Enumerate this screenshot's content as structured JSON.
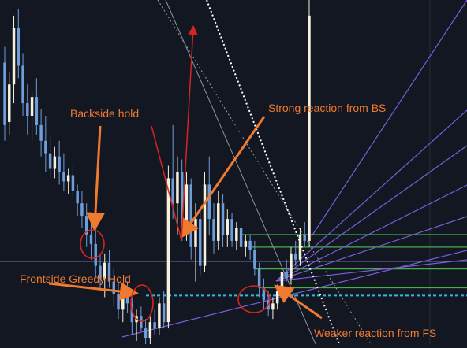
{
  "chart_data": {
    "type": "candlestick",
    "annotations": [
      "Backside hold",
      "Strong reaction from BS",
      "Frontside Greedy Hold",
      "Weaker reaction from FS"
    ],
    "candles": [
      {
        "o": 375,
        "h": 380,
        "l": 350,
        "c": 355
      },
      {
        "o": 356,
        "h": 372,
        "l": 352,
        "c": 368
      },
      {
        "o": 368,
        "h": 390,
        "l": 362,
        "c": 386
      },
      {
        "o": 386,
        "h": 392,
        "l": 370,
        "c": 374
      },
      {
        "o": 374,
        "h": 378,
        "l": 358,
        "c": 362
      },
      {
        "o": 362,
        "h": 368,
        "l": 352,
        "c": 358
      },
      {
        "o": 358,
        "h": 366,
        "l": 350,
        "c": 364
      },
      {
        "o": 364,
        "h": 370,
        "l": 352,
        "c": 355
      },
      {
        "o": 355,
        "h": 360,
        "l": 345,
        "c": 350
      },
      {
        "o": 350,
        "h": 358,
        "l": 340,
        "c": 346
      },
      {
        "o": 346,
        "h": 352,
        "l": 338,
        "c": 341
      },
      {
        "o": 341,
        "h": 348,
        "l": 338,
        "c": 345
      },
      {
        "o": 345,
        "h": 350,
        "l": 336,
        "c": 340
      },
      {
        "o": 340,
        "h": 346,
        "l": 334,
        "c": 337
      },
      {
        "o": 337,
        "h": 341,
        "l": 333,
        "c": 339
      },
      {
        "o": 339,
        "h": 342,
        "l": 332,
        "c": 334
      },
      {
        "o": 334,
        "h": 336,
        "l": 326,
        "c": 330
      },
      {
        "o": 330,
        "h": 334,
        "l": 322,
        "c": 326
      },
      {
        "o": 326,
        "h": 330,
        "l": 316,
        "c": 320
      },
      {
        "o": 320,
        "h": 324,
        "l": 312,
        "c": 317
      },
      {
        "o": 317,
        "h": 322,
        "l": 306,
        "c": 310
      },
      {
        "o": 310,
        "h": 314,
        "l": 302,
        "c": 306
      },
      {
        "o": 306,
        "h": 314,
        "l": 300,
        "c": 311
      },
      {
        "o": 311,
        "h": 315,
        "l": 303,
        "c": 305
      },
      {
        "o": 305,
        "h": 309,
        "l": 297,
        "c": 301
      },
      {
        "o": 301,
        "h": 305,
        "l": 293,
        "c": 296
      },
      {
        "o": 296,
        "h": 304,
        "l": 292,
        "c": 301
      },
      {
        "o": 301,
        "h": 305,
        "l": 295,
        "c": 298
      },
      {
        "o": 298,
        "h": 300,
        "l": 288,
        "c": 292
      },
      {
        "o": 292,
        "h": 296,
        "l": 286,
        "c": 294
      },
      {
        "o": 294,
        "h": 297,
        "l": 289,
        "c": 290
      },
      {
        "o": 290,
        "h": 293,
        "l": 285,
        "c": 287
      },
      {
        "o": 287,
        "h": 294,
        "l": 285,
        "c": 292
      },
      {
        "o": 292,
        "h": 296,
        "l": 288,
        "c": 290
      },
      {
        "o": 290,
        "h": 300,
        "l": 288,
        "c": 298
      },
      {
        "o": 298,
        "h": 302,
        "l": 290,
        "c": 292
      },
      {
        "o": 292,
        "h": 342,
        "l": 290,
        "c": 338
      },
      {
        "o": 338,
        "h": 355,
        "l": 325,
        "c": 330
      },
      {
        "o": 330,
        "h": 345,
        "l": 320,
        "c": 340
      },
      {
        "o": 340,
        "h": 344,
        "l": 318,
        "c": 322
      },
      {
        "o": 322,
        "h": 340,
        "l": 318,
        "c": 336
      },
      {
        "o": 336,
        "h": 338,
        "l": 312,
        "c": 316
      },
      {
        "o": 316,
        "h": 330,
        "l": 305,
        "c": 325
      },
      {
        "o": 325,
        "h": 328,
        "l": 307,
        "c": 310
      },
      {
        "o": 310,
        "h": 340,
        "l": 308,
        "c": 336
      },
      {
        "o": 336,
        "h": 345,
        "l": 320,
        "c": 325
      },
      {
        "o": 325,
        "h": 330,
        "l": 314,
        "c": 318
      },
      {
        "o": 318,
        "h": 334,
        "l": 315,
        "c": 330
      },
      {
        "o": 330,
        "h": 333,
        "l": 316,
        "c": 320
      },
      {
        "o": 320,
        "h": 328,
        "l": 316,
        "c": 325
      },
      {
        "o": 325,
        "h": 327,
        "l": 316,
        "c": 318
      },
      {
        "o": 318,
        "h": 324,
        "l": 315,
        "c": 322
      },
      {
        "o": 322,
        "h": 324,
        "l": 314,
        "c": 316
      },
      {
        "o": 316,
        "h": 320,
        "l": 313,
        "c": 318
      },
      {
        "o": 318,
        "h": 320,
        "l": 312,
        "c": 315
      },
      {
        "o": 315,
        "h": 318,
        "l": 307,
        "c": 309
      },
      {
        "o": 309,
        "h": 311,
        "l": 300,
        "c": 303
      },
      {
        "o": 303,
        "h": 306,
        "l": 296,
        "c": 299
      },
      {
        "o": 299,
        "h": 302,
        "l": 294,
        "c": 296
      },
      {
        "o": 296,
        "h": 300,
        "l": 293,
        "c": 298
      },
      {
        "o": 298,
        "h": 304,
        "l": 296,
        "c": 302
      },
      {
        "o": 302,
        "h": 310,
        "l": 300,
        "c": 308
      },
      {
        "o": 308,
        "h": 312,
        "l": 305,
        "c": 306
      },
      {
        "o": 306,
        "h": 316,
        "l": 304,
        "c": 314
      },
      {
        "o": 314,
        "h": 318,
        "l": 310,
        "c": 312
      },
      {
        "o": 312,
        "h": 322,
        "l": 310,
        "c": 320
      },
      {
        "o": 320,
        "h": 324,
        "l": 316,
        "c": 318
      },
      {
        "o": 318,
        "h": 395,
        "l": 316,
        "c": 390
      }
    ],
    "price_range": [
      285,
      395
    ],
    "horizontal_levels": [
      {
        "price": 311.5,
        "style": "solid",
        "color": "#8F8FC8"
      },
      {
        "price": 300.5,
        "style": "dashed",
        "color": "#2EB8E0"
      },
      {
        "price": 320,
        "style": "solid",
        "color": "#43B04A"
      },
      {
        "price": 316,
        "style": "solid",
        "color": "#43B04A"
      },
      {
        "price": 309,
        "style": "solid",
        "color": "#43B04A"
      },
      {
        "price": 303,
        "style": "solid",
        "color": "#43B04A"
      }
    ],
    "grid": false,
    "colors": {
      "background": "#131722",
      "bull_candle": "#F6F1DC",
      "bear_candle": "#6E9DD9",
      "annotation": "#F07A2E",
      "circle": "#D4261F",
      "fan_line": "#7C5CD9"
    }
  }
}
